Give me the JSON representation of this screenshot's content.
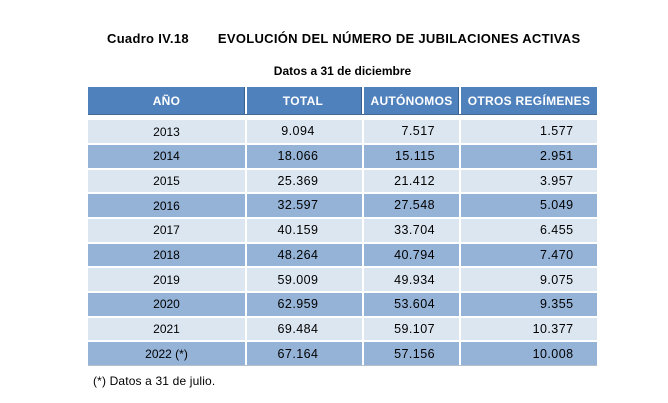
{
  "caption": {
    "number": "Cuadro IV.18",
    "title": "EVOLUCIÓN DEL NÚMERO DE JUBILACIONES ACTIVAS"
  },
  "subtitle": "Datos a 31 de diciembre",
  "footnote": "(*) Datos a 31 de julio.",
  "table": {
    "columns": [
      "AÑO",
      "TOTAL",
      "AUTÓNOMOS",
      "OTROS REGÍMENES"
    ],
    "rows": [
      [
        "2013",
        "9.094",
        "7.517",
        "1.577"
      ],
      [
        "2014",
        "18.066",
        "15.115",
        "2.951"
      ],
      [
        "2015",
        "25.369",
        "21.412",
        "3.957"
      ],
      [
        "2016",
        "32.597",
        "27.548",
        "5.049"
      ],
      [
        "2017",
        "40.159",
        "33.704",
        "6.455"
      ],
      [
        "2018",
        "48.264",
        "40.794",
        "7.470"
      ],
      [
        "2019",
        "59.009",
        "49.934",
        "9.075"
      ],
      [
        "2020",
        "62.959",
        "53.604",
        "9.355"
      ],
      [
        "2021",
        "69.484",
        "59.107",
        "10.377"
      ],
      [
        "2022 (*)",
        "67.164",
        "57.156",
        "10.008"
      ]
    ]
  },
  "colors": {
    "header_bg": "#4f81bd",
    "header_text": "#ffffff",
    "row_light": "#dce6f1",
    "row_medium": "#95b3d7",
    "body_text": "#000000"
  }
}
